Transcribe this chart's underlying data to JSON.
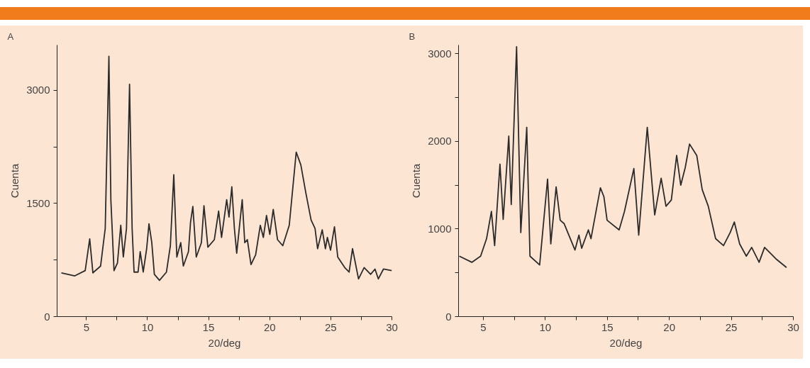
{
  "chart_data": [
    {
      "type": "line",
      "title": "A",
      "xlabel": "20/deg",
      "ylabel": "Cuenta",
      "line_style": "solid",
      "xlim": [
        2.6,
        30
      ],
      "ylim": [
        0,
        3600
      ],
      "xticks": [
        5,
        {
          "value": 7.5,
          "label": null
        },
        10,
        {
          "value": 12.5,
          "label": null
        },
        15,
        {
          "value": 17.5,
          "label": null
        },
        20,
        {
          "value": 22.5,
          "label": null
        },
        25,
        {
          "value": 27.5,
          "label": null
        },
        30
      ],
      "yticks": [
        0,
        {
          "value": 750,
          "label": null
        },
        1500,
        {
          "value": 2250,
          "label": null
        },
        3000
      ],
      "series": [
        {
          "color": "#2b2b2b",
          "x": [
            2.95,
            4.05,
            4.9,
            5.27,
            5.53,
            6.16,
            6.54,
            6.84,
            7.0,
            7.26,
            7.54,
            7.81,
            8.02,
            8.28,
            8.53,
            8.74,
            8.9,
            9.23,
            9.4,
            9.65,
            9.93,
            10.12,
            10.35,
            10.56,
            10.98,
            11.55,
            11.87,
            12.15,
            12.4,
            12.72,
            12.93,
            13.35,
            13.52,
            13.71,
            13.99,
            14.41,
            14.62,
            14.94,
            15.47,
            15.82,
            16.06,
            16.48,
            16.67,
            16.9,
            17.11,
            17.3,
            17.75,
            17.96,
            18.17,
            18.47,
            18.85,
            19.23,
            19.48,
            19.74,
            20.01,
            20.29,
            20.64,
            21.07,
            21.6,
            22.17,
            22.55,
            22.97,
            23.39,
            23.71,
            23.92,
            24.3,
            24.56,
            24.72,
            24.98,
            25.3,
            25.57,
            26.14,
            26.5,
            26.78,
            27.27,
            27.73,
            28.26,
            28.62,
            28.89,
            29.31,
            29.99
          ],
          "values": [
            580,
            540,
            610,
            1030,
            580,
            670,
            1170,
            3450,
            1550,
            610,
            710,
            1210,
            790,
            1170,
            3080,
            1170,
            590,
            590,
            860,
            590,
            900,
            1230,
            980,
            560,
            480,
            590,
            940,
            1880,
            790,
            980,
            670,
            860,
            1250,
            1460,
            790,
            980,
            1470,
            920,
            1020,
            1400,
            1050,
            1550,
            1320,
            1720,
            1170,
            840,
            1550,
            980,
            1020,
            690,
            820,
            1210,
            1050,
            1340,
            1090,
            1420,
            1020,
            940,
            1210,
            2180,
            2010,
            1630,
            1280,
            1170,
            900,
            1150,
            900,
            1050,
            880,
            1190,
            790,
            650,
            590,
            900,
            500,
            650,
            560,
            630,
            500,
            630,
            610
          ]
        }
      ]
    },
    {
      "type": "line",
      "title": "B",
      "xlabel": "20/deg",
      "ylabel": "Cuenta",
      "line_style": "solid",
      "xlim": [
        3,
        30
      ],
      "ylim": [
        0,
        3100
      ],
      "xticks": [
        5,
        {
          "value": 7.5,
          "label": null
        },
        10,
        {
          "value": 12.5,
          "label": null
        },
        15,
        {
          "value": 17.5,
          "label": null
        },
        20,
        {
          "value": 22.5,
          "label": null
        },
        25,
        {
          "value": 27.5,
          "label": null
        },
        30
      ],
      "yticks": [
        0,
        {
          "value": 500,
          "label": null
        },
        1000,
        {
          "value": 1500,
          "label": null
        },
        2000,
        {
          "value": 2500,
          "label": null
        },
        3000
      ],
      "series": [
        {
          "color": "#2b2b2b",
          "x": [
            3.06,
            4.07,
            4.78,
            5.26,
            5.65,
            5.91,
            6.34,
            6.6,
            7.05,
            7.25,
            7.68,
            8.02,
            8.5,
            8.76,
            9.54,
            10.18,
            10.44,
            10.87,
            11.2,
            11.52,
            12.39,
            12.71,
            12.93,
            13.47,
            13.68,
            14.44,
            14.72,
            14.98,
            15.95,
            16.38,
            17.14,
            17.53,
            18.22,
            18.82,
            19.34,
            19.73,
            20.16,
            20.59,
            20.92,
            21.28,
            21.63,
            22.21,
            22.65,
            23.14,
            23.73,
            24.37,
            24.91,
            25.24,
            25.67,
            26.21,
            26.64,
            27.24,
            27.68,
            28.59,
            29.45
          ],
          "values": [
            690,
            620,
            690,
            890,
            1200,
            810,
            1740,
            1110,
            2060,
            1280,
            3080,
            960,
            2160,
            690,
            590,
            1570,
            830,
            1480,
            1100,
            1060,
            760,
            930,
            780,
            990,
            890,
            1470,
            1370,
            1100,
            990,
            1200,
            1690,
            930,
            2160,
            1160,
            1580,
            1260,
            1330,
            1840,
            1500,
            1700,
            1970,
            1840,
            1450,
            1260,
            890,
            810,
            960,
            1080,
            830,
            690,
            790,
            620,
            790,
            660,
            560
          ]
        }
      ]
    }
  ]
}
